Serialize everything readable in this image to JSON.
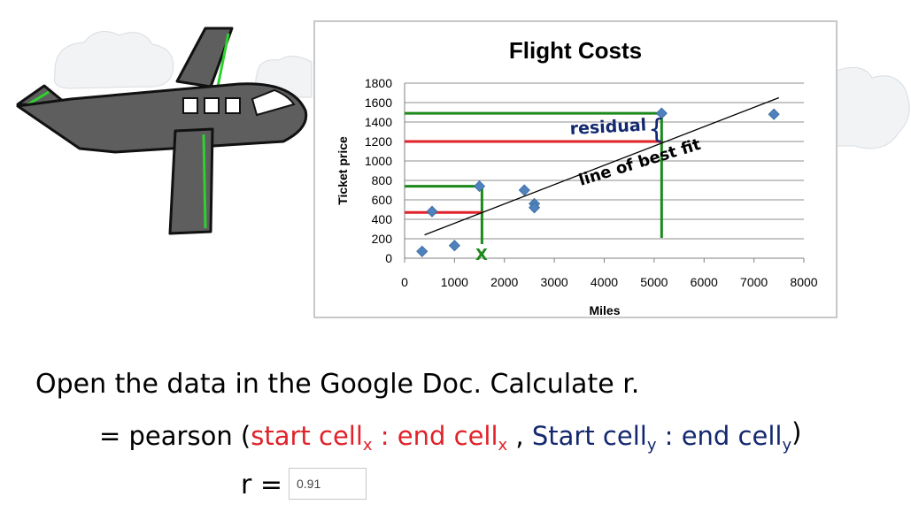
{
  "chart_data": {
    "type": "scatter",
    "title": "Flight Costs",
    "xlabel": "Miles",
    "ylabel": "Ticket price",
    "xlim": [
      0,
      8000
    ],
    "ylim": [
      0,
      1800
    ],
    "x_ticks": [
      0,
      1000,
      2000,
      3000,
      4000,
      5000,
      6000,
      7000,
      8000
    ],
    "y_ticks": [
      0,
      200,
      400,
      600,
      800,
      1000,
      1200,
      1400,
      1600,
      1800
    ],
    "grid": true,
    "points": [
      {
        "x": 350,
        "y": 70
      },
      {
        "x": 550,
        "y": 480
      },
      {
        "x": 1000,
        "y": 130
      },
      {
        "x": 1500,
        "y": 740
      },
      {
        "x": 2400,
        "y": 700
      },
      {
        "x": 2600,
        "y": 560
      },
      {
        "x": 2600,
        "y": 520
      },
      {
        "x": 5150,
        "y": 1490
      },
      {
        "x": 7400,
        "y": 1480
      }
    ],
    "trendline": {
      "x": [
        400,
        7500
      ],
      "y": [
        240,
        1650
      ]
    },
    "marker_color": "#4f81bd",
    "annotations": {
      "residual": "residual",
      "line_of_best_fit": "line of best fit",
      "x_marker": "X"
    }
  },
  "colors": {
    "green": "#1b8a1b",
    "red": "#e0222a",
    "navy": "#13286e",
    "plane_gray": "#5e5e5e",
    "plane_stripe": "#2ed12e"
  },
  "instructions": {
    "line1": "Open the data in the Google Doc. Calculate r.",
    "formula_eq": "= pearson (",
    "start_x": "start cell",
    "sub_x1": "x",
    "colon1": " : ",
    "end_x": "end cell",
    "sub_x2": "x",
    "comma": " , ",
    "start_y": "Start cell",
    "sub_y1": "y",
    "colon2": " : ",
    "end_y": "end cell",
    "sub_y2": "y",
    "close": ")",
    "r_label": "r =",
    "r_value": "0.91"
  }
}
